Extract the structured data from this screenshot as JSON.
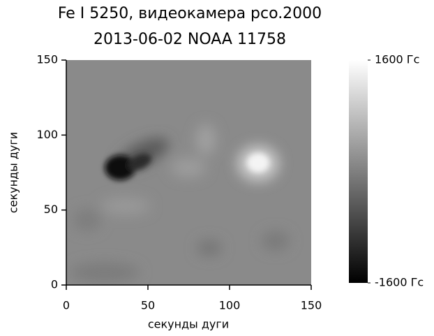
{
  "chart_data": {
    "type": "heatmap",
    "title": "Fe I 5250, видеокамера pco.2000",
    "subtitle": "2013-06-02 NOAA 11758",
    "xlabel": "секунды дуги",
    "ylabel": "секунды дуги",
    "xlim": [
      0,
      150
    ],
    "ylim": [
      0,
      150
    ],
    "xticks": [
      0,
      50,
      100,
      150
    ],
    "yticks": [
      0,
      50,
      100,
      150
    ],
    "colormap": "gray",
    "zlim": [
      -1600,
      1600
    ],
    "zticks": [
      {
        "value": 1600,
        "label": "1600 Гс"
      },
      {
        "value": -1600,
        "label": "-1600 Гс"
      }
    ]
  }
}
